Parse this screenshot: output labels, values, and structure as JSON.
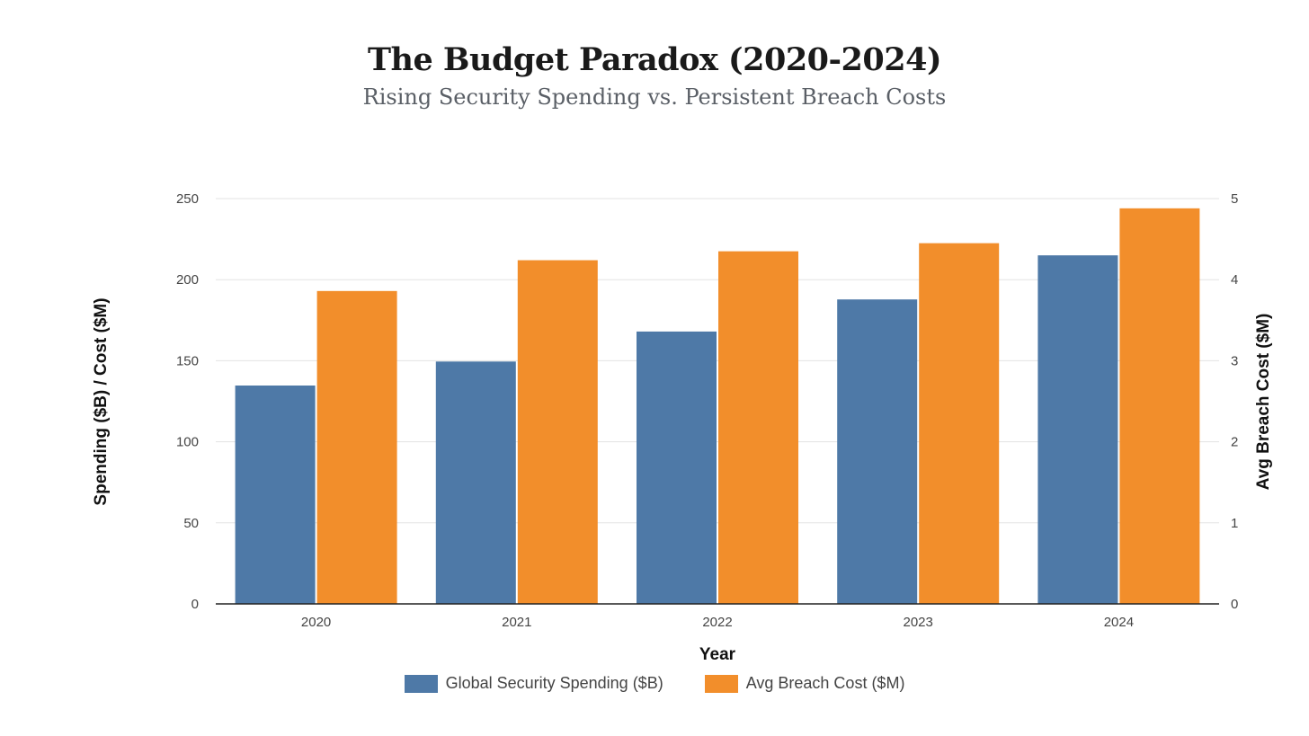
{
  "chart_data": {
    "type": "bar",
    "title": "The Budget Paradox (2020-2024)",
    "subtitle": "Rising Security Spending vs. Persistent Breach Costs",
    "xlabel": "Year",
    "ylabel": "Spending ($B) / Cost ($M)",
    "y2label": "Avg Breach Cost ($M)",
    "categories": [
      "2020",
      "2021",
      "2022",
      "2023",
      "2024"
    ],
    "ylim": [
      0,
      250
    ],
    "y2lim": [
      0,
      5
    ],
    "yticks": [
      "0",
      "50",
      "100",
      "150",
      "200",
      "250"
    ],
    "y2ticks": [
      "0",
      "1",
      "2",
      "3",
      "4",
      "5"
    ],
    "grid": true,
    "legend_position": "bottom",
    "series": [
      {
        "name": "Global Security Spending ($B)",
        "axis": "left",
        "color": "#4e79a7",
        "values": [
          134.7,
          149.5,
          168.0,
          187.8,
          215.0
        ]
      },
      {
        "name": "Avg Breach Cost ($M)",
        "axis": "right",
        "color": "#f28e2b",
        "values": [
          3.86,
          4.24,
          4.35,
          4.45,
          4.88
        ]
      }
    ]
  }
}
